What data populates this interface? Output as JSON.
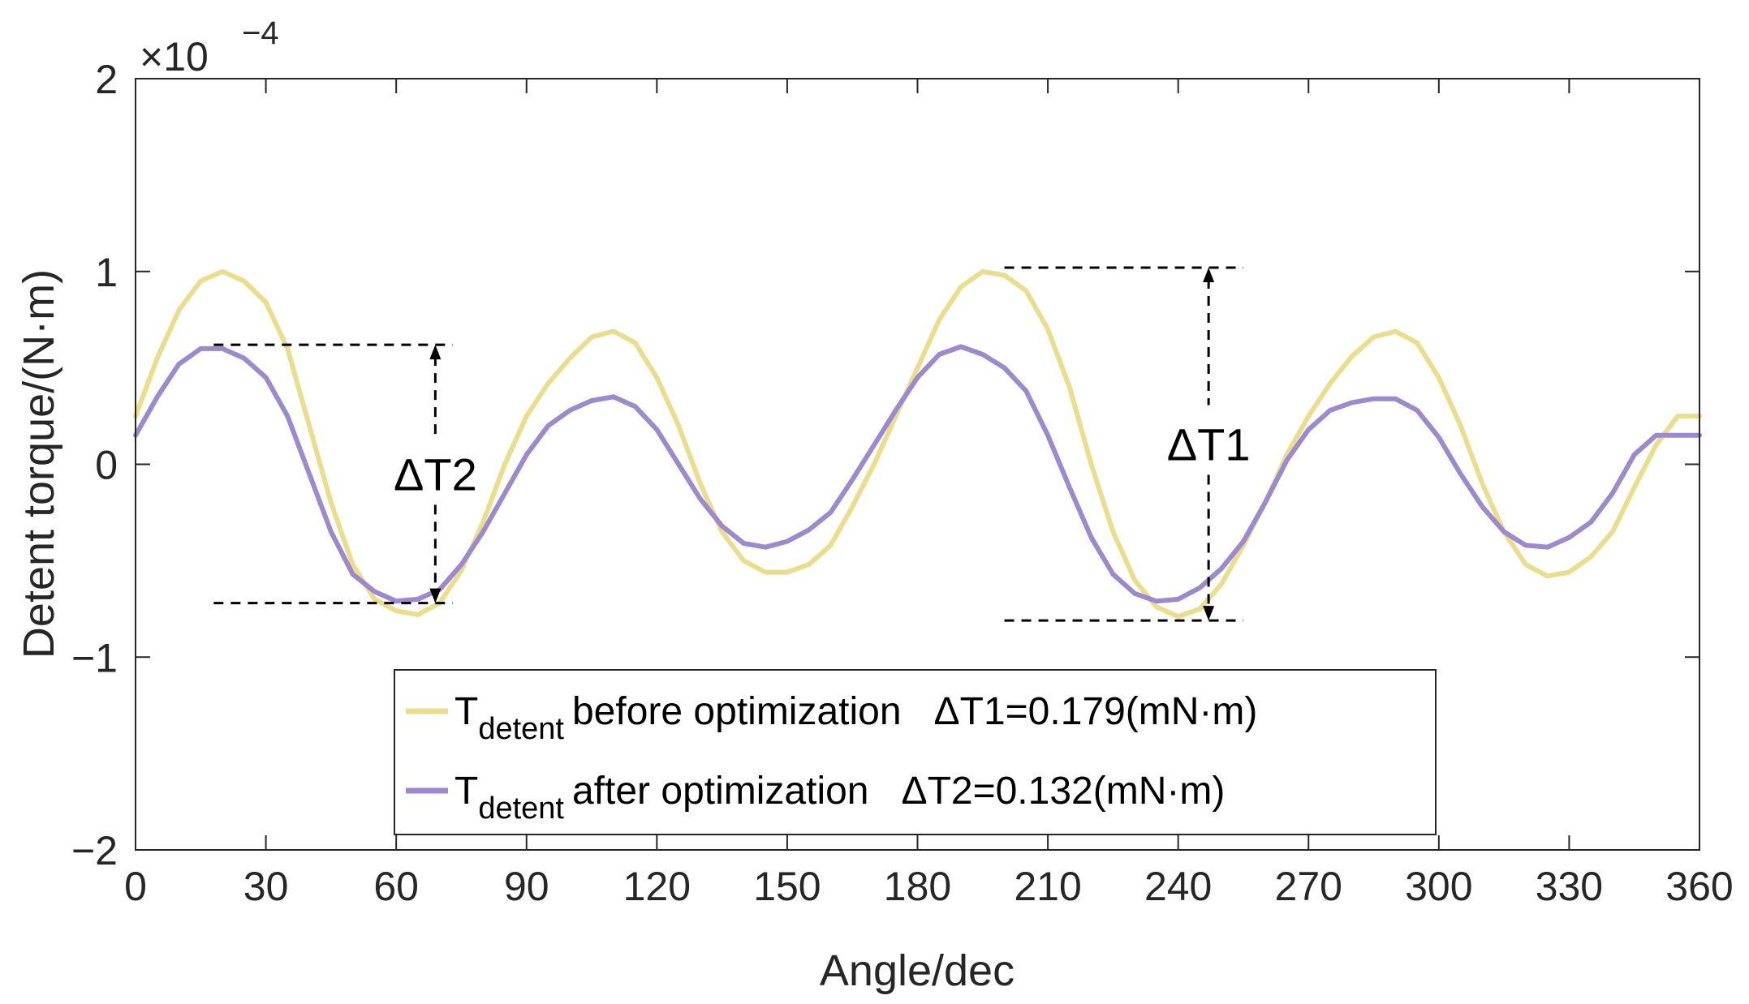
{
  "chart_data": {
    "type": "line",
    "xlabel": "Angle/dec",
    "ylabel": "Detent torque/(N·m)",
    "exponent_label": "×10",
    "exponent_power": "−4",
    "xlim": [
      0,
      360
    ],
    "ylim": [
      -2,
      2
    ],
    "xticks": [
      0,
      30,
      60,
      90,
      120,
      150,
      180,
      210,
      240,
      270,
      300,
      330,
      360
    ],
    "yticks": [
      -2,
      -1,
      0,
      1,
      2
    ],
    "ytick_labels": [
      "−2",
      "−1",
      "0",
      "1",
      "2"
    ],
    "series": [
      {
        "name": "T_detent before optimization",
        "legend_main": "T",
        "legend_sub": "detent",
        "legend_text": "before optimization   ΔT1=0.179(mN·m)",
        "color": "#EADE8C",
        "x": [
          0,
          5,
          10,
          15,
          20,
          25,
          30,
          35,
          40,
          45,
          50,
          55,
          60,
          65,
          70,
          75,
          80,
          85,
          90,
          95,
          100,
          105,
          110,
          115,
          120,
          125,
          130,
          135,
          140,
          145,
          150,
          155,
          160,
          165,
          170,
          175,
          180,
          185,
          190,
          195,
          200,
          205,
          210,
          215,
          220,
          225,
          230,
          235,
          240,
          245,
          250,
          255,
          260,
          265,
          270,
          275,
          280,
          285,
          290,
          295,
          300,
          305,
          310,
          315,
          320,
          325,
          330,
          335,
          340,
          345,
          350,
          355,
          360
        ],
        "values": [
          0.25,
          0.55,
          0.8,
          0.95,
          1.0,
          0.95,
          0.84,
          0.6,
          0.2,
          -0.2,
          -0.52,
          -0.7,
          -0.76,
          -0.78,
          -0.72,
          -0.55,
          -0.3,
          0.0,
          0.25,
          0.42,
          0.55,
          0.66,
          0.69,
          0.63,
          0.45,
          0.2,
          -0.1,
          -0.35,
          -0.5,
          -0.56,
          -0.56,
          -0.52,
          -0.42,
          -0.22,
          0.0,
          0.25,
          0.5,
          0.75,
          0.92,
          1.0,
          0.98,
          0.9,
          0.7,
          0.4,
          0.0,
          -0.35,
          -0.6,
          -0.74,
          -0.79,
          -0.75,
          -0.62,
          -0.42,
          -0.2,
          0.05,
          0.25,
          0.42,
          0.56,
          0.66,
          0.69,
          0.63,
          0.45,
          0.2,
          -0.1,
          -0.35,
          -0.52,
          -0.58,
          -0.56,
          -0.48,
          -0.35,
          -0.12,
          0.1,
          0.25,
          0.25
        ]
      },
      {
        "name": "T_detent after optimization",
        "legend_main": "T",
        "legend_sub": "detent",
        "legend_text": "after optimization   ΔT2=0.132(mN·m)",
        "color": "#9B8AD0",
        "x": [
          0,
          5,
          10,
          15,
          20,
          25,
          30,
          35,
          40,
          45,
          50,
          55,
          60,
          65,
          70,
          75,
          80,
          85,
          90,
          95,
          100,
          105,
          110,
          115,
          120,
          125,
          130,
          135,
          140,
          145,
          150,
          155,
          160,
          165,
          170,
          175,
          180,
          185,
          190,
          195,
          200,
          205,
          210,
          215,
          220,
          225,
          230,
          235,
          240,
          245,
          250,
          255,
          260,
          265,
          270,
          275,
          280,
          285,
          290,
          295,
          300,
          305,
          310,
          315,
          320,
          325,
          330,
          335,
          340,
          345,
          350,
          355,
          360
        ],
        "values": [
          0.15,
          0.35,
          0.52,
          0.6,
          0.6,
          0.55,
          0.45,
          0.25,
          -0.05,
          -0.35,
          -0.57,
          -0.66,
          -0.71,
          -0.7,
          -0.65,
          -0.52,
          -0.35,
          -0.15,
          0.05,
          0.2,
          0.28,
          0.33,
          0.35,
          0.3,
          0.18,
          0.0,
          -0.18,
          -0.32,
          -0.41,
          -0.43,
          -0.4,
          -0.34,
          -0.25,
          -0.08,
          0.1,
          0.28,
          0.45,
          0.57,
          0.61,
          0.57,
          0.5,
          0.38,
          0.15,
          -0.12,
          -0.38,
          -0.57,
          -0.67,
          -0.71,
          -0.7,
          -0.64,
          -0.54,
          -0.4,
          -0.2,
          0.02,
          0.18,
          0.28,
          0.32,
          0.34,
          0.34,
          0.28,
          0.14,
          -0.05,
          -0.22,
          -0.35,
          -0.42,
          -0.43,
          -0.38,
          -0.3,
          -0.15,
          0.05,
          0.15,
          0.15,
          0.15
        ]
      }
    ],
    "annotations": [
      {
        "label": "ΔT2",
        "x_range": [
          18,
          73
        ],
        "y_top": 0.62,
        "y_bottom": -0.72,
        "arrow_x": 69
      },
      {
        "label": "ΔT1",
        "x_range": [
          200,
          255
        ],
        "y_top": 1.02,
        "y_bottom": -0.81,
        "arrow_x": 247
      }
    ],
    "legend_position": "bottom-center",
    "grid": false
  }
}
